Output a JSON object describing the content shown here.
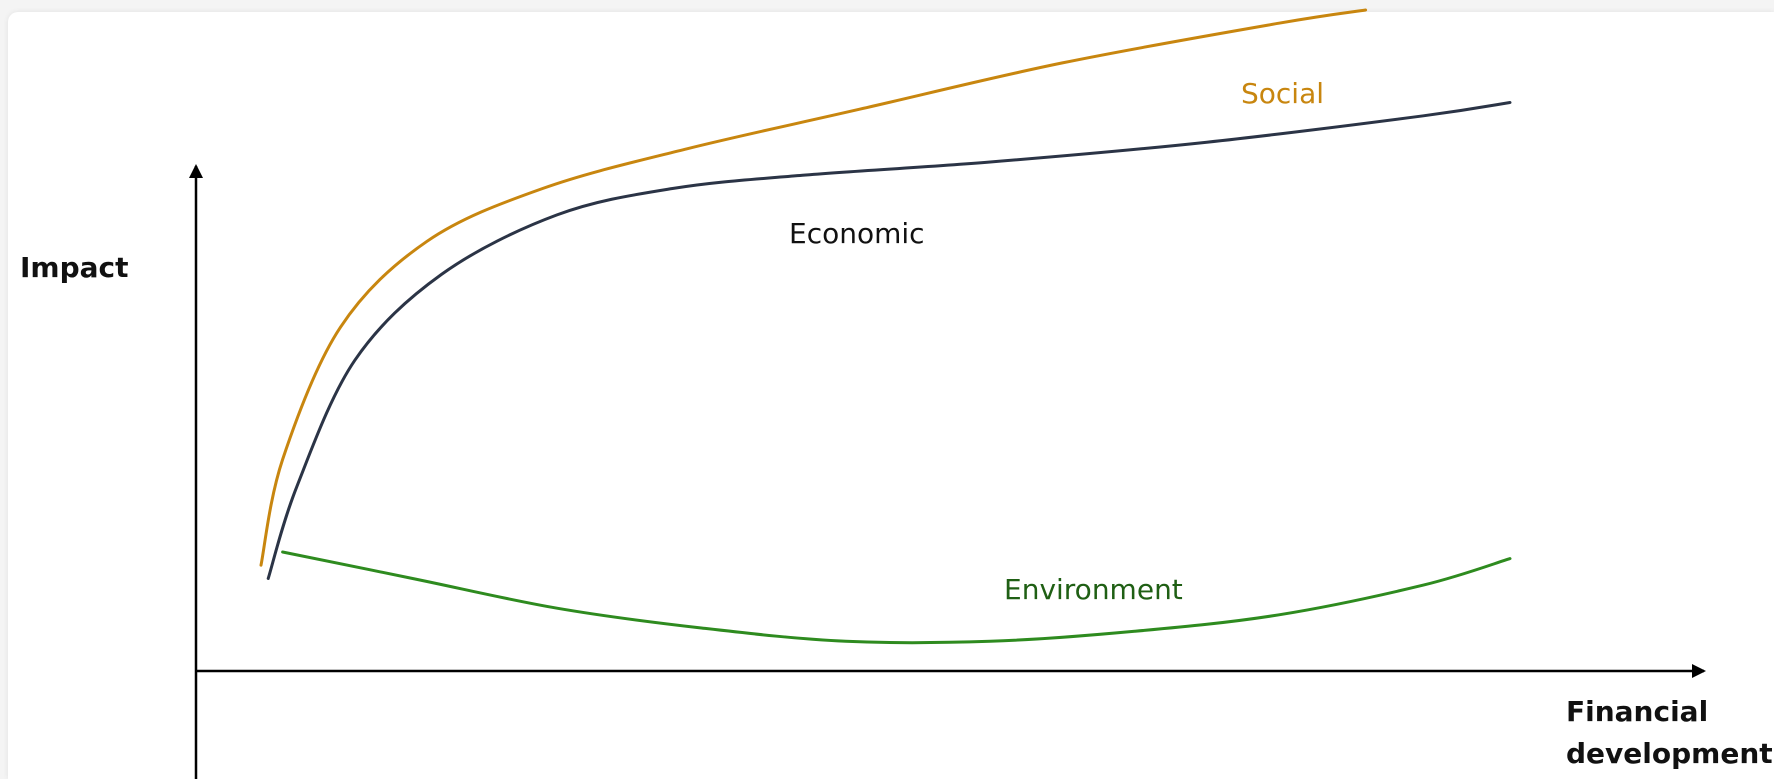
{
  "chart_data": {
    "type": "line",
    "title": "",
    "xlabel": [
      "Financial",
      "development"
    ],
    "ylabel": "Impact",
    "grid": false,
    "legend": "inline labels next to curves",
    "xlim": [
      0,
      100
    ],
    "ylim": [
      0,
      100
    ],
    "colors": {
      "social": "#c8860f",
      "economic": "#2b3446",
      "environment": "#2e8b1f",
      "axis": "#000000"
    },
    "series": [
      {
        "name": "Social",
        "key": "social",
        "x": [
          4.5,
          6,
          10,
          16,
          24,
          34,
          46,
          60,
          75,
          81
        ],
        "y": [
          16,
          32,
          52,
          65,
          73,
          79,
          85,
          92,
          98,
          100
        ]
      },
      {
        "name": "Economic",
        "key": "economic",
        "x": [
          5,
          7,
          11,
          17,
          25,
          33,
          42,
          55,
          70,
          85,
          91
        ],
        "y": [
          14,
          28,
          47,
          60,
          69,
          73,
          75,
          77,
          80,
          84,
          86
        ]
      },
      {
        "name": "Environment",
        "key": "environment",
        "x": [
          6,
          15,
          25,
          35,
          45,
          55,
          65,
          75,
          85,
          91
        ],
        "y": [
          18,
          14,
          9.5,
          6.5,
          4.5,
          4.5,
          6,
          8.5,
          13,
          17
        ]
      }
    ]
  }
}
